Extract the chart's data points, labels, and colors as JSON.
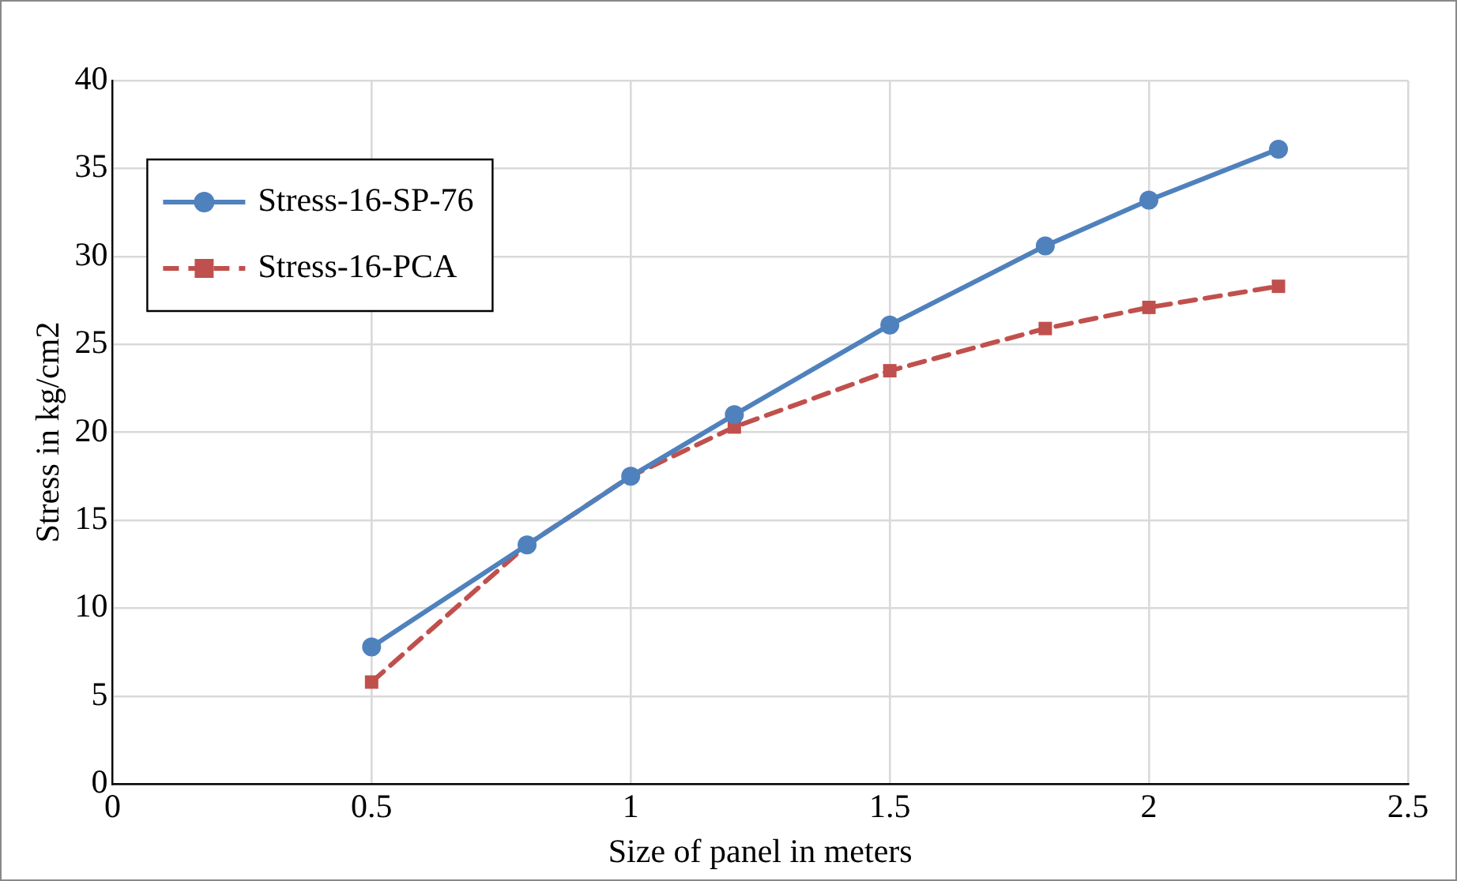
{
  "chart_data": {
    "type": "line",
    "xlabel": "Size of panel in meters",
    "ylabel": "Stress in kg/cm2",
    "x": [
      0.5,
      0.8,
      1.0,
      1.2,
      1.5,
      1.8,
      2.0,
      2.25
    ],
    "series": [
      {
        "name": "Stress-16-SP-76",
        "color": "#4f81bd",
        "values": [
          7.8,
          13.6,
          17.5,
          21.0,
          26.1,
          30.6,
          33.2,
          36.1
        ],
        "marker": "circle",
        "line_style": "solid"
      },
      {
        "name": "Stress-16-PCA",
        "color": "#c0504d",
        "values": [
          5.8,
          13.6,
          17.5,
          20.3,
          23.5,
          25.9,
          27.1,
          28.3
        ],
        "marker": "square",
        "line_style": "dashed"
      }
    ],
    "xlim": [
      0,
      2.5
    ],
    "xticks": [
      0,
      0.5,
      1,
      1.5,
      2,
      2.5
    ],
    "ylim": [
      0,
      40
    ],
    "yticks": [
      0,
      5,
      10,
      15,
      20,
      25,
      30,
      35,
      40
    ],
    "grid": true,
    "legend": "top left"
  }
}
